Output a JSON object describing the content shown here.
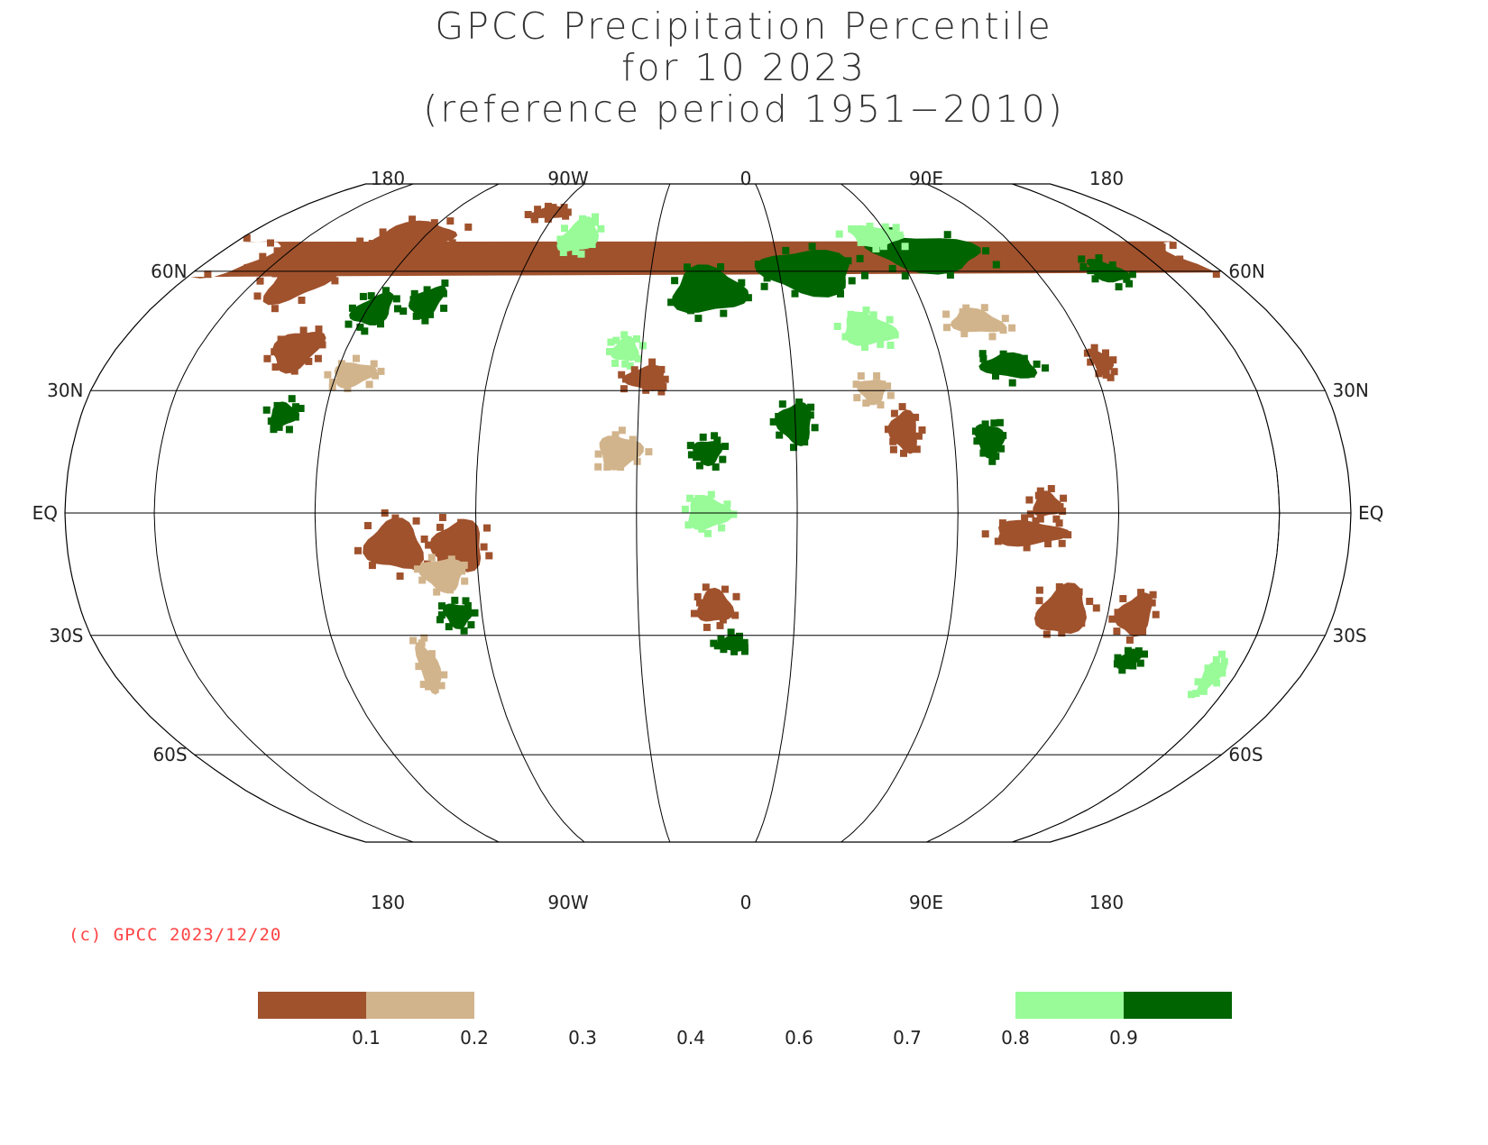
{
  "title": {
    "line1": "GPCC Precipitation Percentile",
    "line2": "for 10 2023",
    "line3": "(reference period 1951−2010)"
  },
  "credit": "(c) GPCC 2023/12/20",
  "map": {
    "projection": "robinson",
    "lon_top_labels": [
      "180",
      "90W",
      "0",
      "90E",
      "180"
    ],
    "lon_bottom_labels": [
      "180",
      "90W",
      "0",
      "90E",
      "180"
    ],
    "lat_labels": [
      {
        "lat": 60,
        "left": "60N",
        "right": "60N"
      },
      {
        "lat": 30,
        "left": "30N",
        "right": "30N"
      },
      {
        "lat": 0,
        "left": "EQ",
        "right": "EQ"
      },
      {
        "lat": -30,
        "left": "30S",
        "right": "30S"
      },
      {
        "lat": -60,
        "left": "60S",
        "right": "60S"
      }
    ],
    "colors": {
      "very_dry": "#a0522d",
      "dry": "#d2b48c",
      "wet": "#98fb98",
      "very_wet": "#006400",
      "grid": "#000000"
    },
    "regions": [
      {
        "name": "Alaska",
        "category": "very_dry",
        "lon": -155,
        "lat": 64,
        "rx": 14,
        "ry": 5
      },
      {
        "name": "Western Canada",
        "category": "very_dry",
        "lon": -120,
        "lat": 58,
        "rx": 10,
        "ry": 6
      },
      {
        "name": "Canadian Arctic",
        "category": "very_dry",
        "lon": -95,
        "lat": 70,
        "rx": 15,
        "ry": 4
      },
      {
        "name": "Greenland West",
        "category": "very_dry",
        "lon": -48,
        "lat": 77,
        "rx": 8,
        "ry": 2
      },
      {
        "name": "Ontario",
        "category": "very_wet",
        "lon": -88,
        "lat": 50,
        "rx": 6,
        "ry": 4
      },
      {
        "name": "Quebec",
        "category": "very_wet",
        "lon": -72,
        "lat": 52,
        "rx": 5,
        "ry": 4
      },
      {
        "name": "Great Plains",
        "category": "very_dry",
        "lon": -105,
        "lat": 40,
        "rx": 7,
        "ry": 5
      },
      {
        "name": "US Southeast",
        "category": "dry",
        "lon": -85,
        "lat": 34,
        "rx": 6,
        "ry": 3
      },
      {
        "name": "Mexico",
        "category": "very_wet",
        "lon": -102,
        "lat": 24,
        "rx": 4,
        "ry": 3
      },
      {
        "name": "Greenland East",
        "category": "wet",
        "lon": -30,
        "lat": 70,
        "rx": 7,
        "ry": 5
      },
      {
        "name": "Amazon West",
        "category": "very_dry",
        "lon": -68,
        "lat": -8,
        "rx": 8,
        "ry": 6
      },
      {
        "name": "Amazon East",
        "category": "very_dry",
        "lon": -50,
        "lat": -8,
        "rx": 7,
        "ry": 6
      },
      {
        "name": "Central Brazil",
        "category": "dry",
        "lon": -55,
        "lat": -15,
        "rx": 6,
        "ry": 4
      },
      {
        "name": "Southern Brazil",
        "category": "very_wet",
        "lon": -52,
        "lat": -25,
        "rx": 4,
        "ry": 3
      },
      {
        "name": "Argentina",
        "category": "dry",
        "lon": -64,
        "lat": -38,
        "rx": 3,
        "ry": 6
      },
      {
        "name": "Europe",
        "category": "very_wet",
        "lon": 20,
        "lat": 55,
        "rx": 12,
        "ry": 6
      },
      {
        "name": "Iberia",
        "category": "wet",
        "lon": -5,
        "lat": 40,
        "rx": 4,
        "ry": 3
      },
      {
        "name": "North Africa",
        "category": "very_dry",
        "lon": 2,
        "lat": 33,
        "rx": 6,
        "ry": 3
      },
      {
        "name": "Russia West",
        "category": "very_wet",
        "lon": 55,
        "lat": 60,
        "rx": 16,
        "ry": 6
      },
      {
        "name": "Siberia",
        "category": "very_wet",
        "lon": 100,
        "lat": 65,
        "rx": 20,
        "ry": 5
      },
      {
        "name": "Siberia North",
        "category": "wet",
        "lon": 85,
        "lat": 70,
        "rx": 10,
        "ry": 3
      },
      {
        "name": "Kazakhstan",
        "category": "wet",
        "lon": 70,
        "lat": 45,
        "rx": 8,
        "ry": 4
      },
      {
        "name": "Mongolia",
        "category": "dry",
        "lon": 105,
        "lat": 47,
        "rx": 8,
        "ry": 3
      },
      {
        "name": "China North",
        "category": "very_wet",
        "lon": 110,
        "lat": 36,
        "rx": 8,
        "ry": 3
      },
      {
        "name": "Arabia",
        "category": "very_wet",
        "lon": 45,
        "lat": 22,
        "rx": 5,
        "ry": 5
      },
      {
        "name": "Sahel",
        "category": "very_wet",
        "lon": 20,
        "lat": 15,
        "rx": 4,
        "ry": 3
      },
      {
        "name": "West Africa",
        "category": "dry",
        "lon": -5,
        "lat": 15,
        "rx": 6,
        "ry": 4
      },
      {
        "name": "Central Africa",
        "category": "wet",
        "lon": 20,
        "lat": 0,
        "rx": 6,
        "ry": 4
      },
      {
        "name": "Southern Africa",
        "category": "very_dry",
        "lon": 22,
        "lat": -23,
        "rx": 5,
        "ry": 4
      },
      {
        "name": "South Africa Coast",
        "category": "very_wet",
        "lon": 27,
        "lat": -32,
        "rx": 4,
        "ry": 2
      },
      {
        "name": "India",
        "category": "very_dry",
        "lon": 76,
        "lat": 20,
        "rx": 4,
        "ry": 5
      },
      {
        "name": "Pakistan",
        "category": "dry",
        "lon": 68,
        "lat": 30,
        "rx": 4,
        "ry": 3
      },
      {
        "name": "Southeast Asia",
        "category": "very_wet",
        "lon": 100,
        "lat": 18,
        "rx": 4,
        "ry": 4
      },
      {
        "name": "Indonesia",
        "category": "very_dry",
        "lon": 110,
        "lat": -5,
        "rx": 10,
        "ry": 3
      },
      {
        "name": "Borneo",
        "category": "very_dry",
        "lon": 115,
        "lat": 2,
        "rx": 4,
        "ry": 3
      },
      {
        "name": "Australia West",
        "category": "very_dry",
        "lon": 122,
        "lat": -24,
        "rx": 7,
        "ry": 6
      },
      {
        "name": "Australia East",
        "category": "very_dry",
        "lon": 143,
        "lat": -25,
        "rx": 5,
        "ry": 5
      },
      {
        "name": "Australia South",
        "category": "very_wet",
        "lon": 146,
        "lat": -36,
        "rx": 3,
        "ry": 2
      },
      {
        "name": "New Zealand",
        "category": "wet",
        "lon": 173,
        "lat": -40,
        "rx": 3,
        "ry": 4
      },
      {
        "name": "Japan",
        "category": "very_dry",
        "lon": 138,
        "lat": 37,
        "rx": 3,
        "ry": 3
      },
      {
        "name": "Kamchatka",
        "category": "very_wet",
        "lon": 160,
        "lat": 60,
        "rx": 6,
        "ry": 3
      }
    ]
  },
  "legend": {
    "ticks": [
      "0.1",
      "0.2",
      "0.3",
      "0.4",
      "0.6",
      "0.7",
      "0.8",
      "0.9"
    ],
    "swatches": [
      {
        "bin": "0.0-0.1",
        "color": "#a0522d"
      },
      {
        "bin": "0.1-0.2",
        "color": "#d2b48c"
      },
      {
        "bin": "0.8-0.9",
        "color": "#98fb98"
      },
      {
        "bin": "0.9-1.0",
        "color": "#006400"
      }
    ]
  }
}
